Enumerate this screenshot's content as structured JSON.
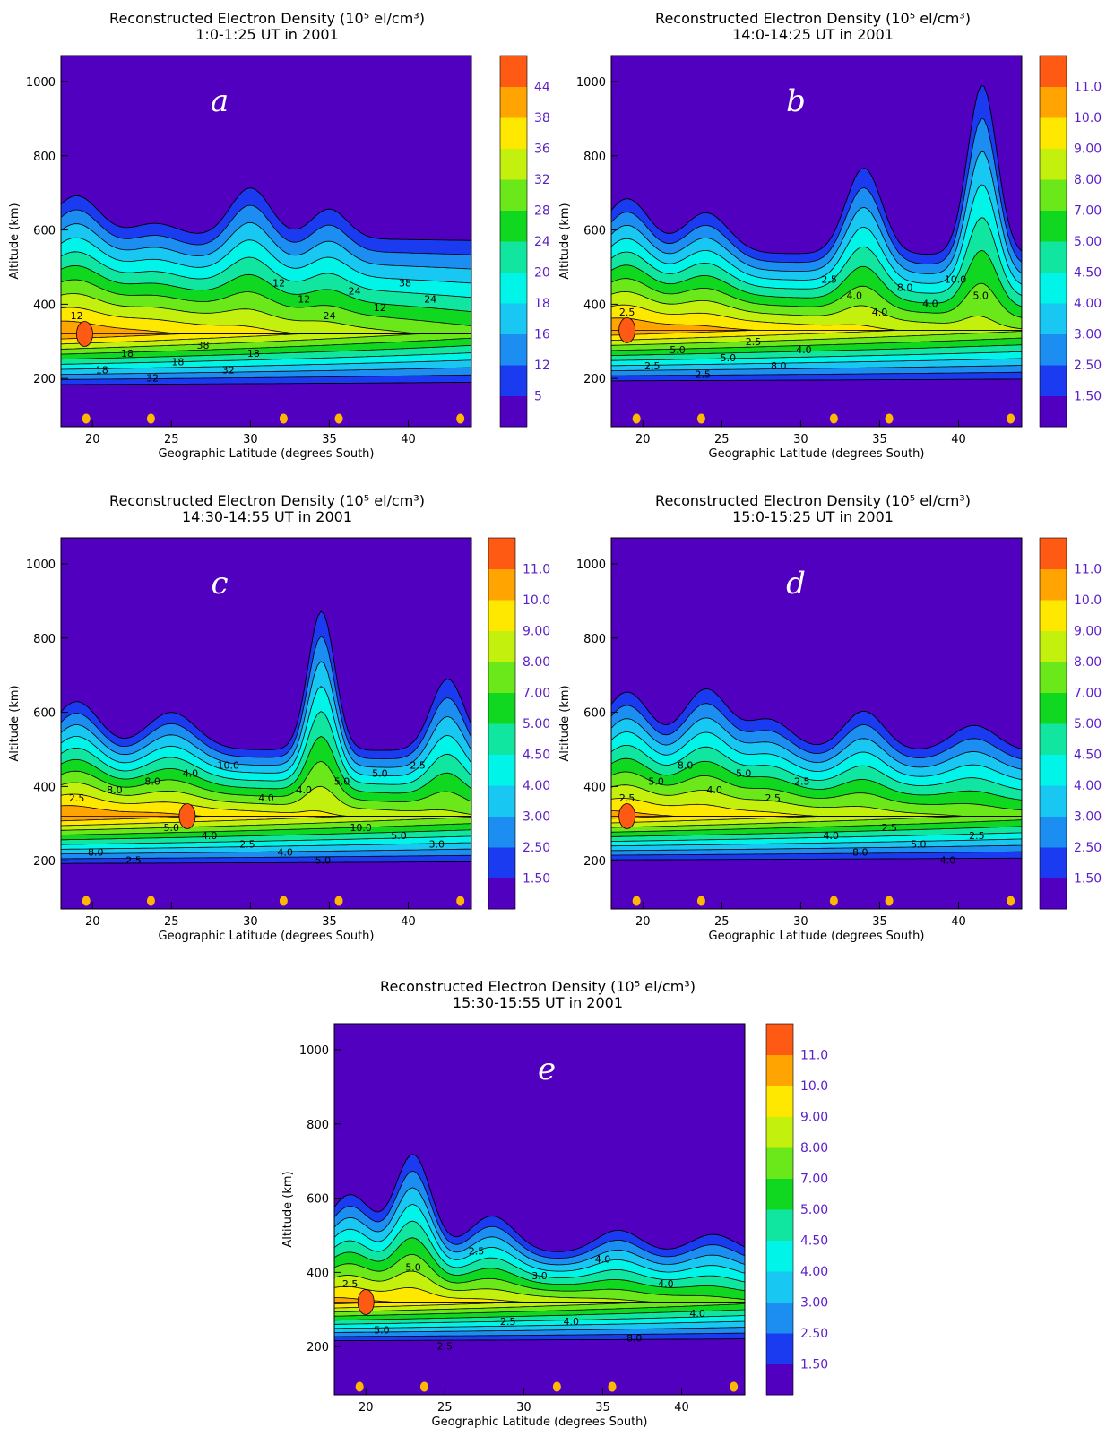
{
  "chart_data": [
    {
      "type": "heatmap",
      "panel": "a",
      "title": "Reconstructed Electron Density (10⁵ el/cm³)",
      "subtitle": "1:0-1:25 UT in 2001",
      "xlabel": "Geographic Latitude (degrees South)",
      "ylabel": "Altitude (km)",
      "xlim": [
        18,
        44
      ],
      "ylim": [
        70,
        1070
      ],
      "xticks": [
        20,
        25,
        30,
        35,
        40
      ],
      "yticks": [
        200,
        400,
        600,
        800,
        1000
      ],
      "colorbar_labels": [
        "5",
        "12",
        "16",
        "18",
        "20",
        "24",
        "28",
        "32",
        "36",
        "38",
        "44"
      ],
      "peak": {
        "x": 19.5,
        "y": 320
      },
      "contour_labels": [
        "12",
        "18",
        "24",
        "32",
        "38",
        "38",
        "12",
        "18",
        "24",
        "32",
        "24",
        "18",
        "12",
        "18",
        "12"
      ],
      "stations_x": [
        19.6,
        23.7,
        32.1,
        35.6,
        43.3
      ]
    },
    {
      "type": "heatmap",
      "panel": "b",
      "title": "Reconstructed Electron Density (10⁵ el/cm³)",
      "subtitle": "14:0-14:25 UT in 2001",
      "xlabel": "Geographic Latitude (degrees South)",
      "ylabel": "Altitude (km)",
      "xlim": [
        18,
        44
      ],
      "ylim": [
        70,
        1070
      ],
      "xticks": [
        20,
        25,
        30,
        35,
        40
      ],
      "yticks": [
        200,
        400,
        600,
        800,
        1000
      ],
      "colorbar_labels": [
        "1.50",
        "2.50",
        "3.00",
        "4.00",
        "4.50",
        "5.00",
        "7.00",
        "8.00",
        "9.00",
        "10.0",
        "11.0"
      ],
      "peak": {
        "x": 19,
        "y": 330
      },
      "contour_labels": [
        "2.5",
        "4.0",
        "5.0",
        "8.0",
        "10.0",
        "2.5",
        "4.0",
        "5.0",
        "8.0",
        "2.5",
        "4.0",
        "5.0",
        "4.0",
        "2.5",
        "2.5"
      ],
      "stations_x": [
        19.6,
        23.7,
        32.1,
        35.6,
        43.3
      ]
    },
    {
      "type": "heatmap",
      "panel": "c",
      "title": "Reconstructed Electron Density (10⁵ el/cm³)",
      "subtitle": "14:30-14:55 UT in 2001",
      "xlabel": "Geographic Latitude (degrees South)",
      "ylabel": "Altitude (km)",
      "xlim": [
        18,
        44
      ],
      "ylim": [
        70,
        1070
      ],
      "xticks": [
        20,
        25,
        30,
        35,
        40
      ],
      "yticks": [
        200,
        400,
        600,
        800,
        1000
      ],
      "colorbar_labels": [
        "1.50",
        "2.50",
        "3.00",
        "4.00",
        "4.50",
        "5.00",
        "7.00",
        "8.00",
        "9.00",
        "10.0",
        "11.0"
      ],
      "peak": {
        "x": 26,
        "y": 320
      },
      "contour_labels": [
        "2.5",
        "4.0",
        "5.0",
        "8.0",
        "10.0",
        "10.0",
        "8.0",
        "2.5",
        "5.0",
        "2.5",
        "4.0",
        "5.0",
        "8.0",
        "4.0",
        "2.5",
        "5.0",
        "4.0",
        "3.0",
        "4.0",
        "5.0"
      ],
      "stations_x": [
        19.6,
        23.7,
        32.1,
        35.6,
        43.3
      ]
    },
    {
      "type": "heatmap",
      "panel": "d",
      "title": "Reconstructed Electron Density (10⁵ el/cm³)",
      "subtitle": "15:0-15:25 UT in 2001",
      "xlabel": "Geographic Latitude (degrees South)",
      "ylabel": "Altitude (km)",
      "xlim": [
        18,
        44
      ],
      "ylim": [
        70,
        1070
      ],
      "xticks": [
        20,
        25,
        30,
        35,
        40
      ],
      "yticks": [
        200,
        400,
        600,
        800,
        1000
      ],
      "colorbar_labels": [
        "1.50",
        "2.50",
        "3.00",
        "4.00",
        "4.50",
        "5.00",
        "7.00",
        "8.00",
        "9.00",
        "10.0",
        "11.0"
      ],
      "peak": {
        "x": 19,
        "y": 320
      },
      "contour_labels": [
        "2.5",
        "4.0",
        "5.0",
        "8.0",
        "8.0",
        "2.5",
        "4.0",
        "5.0",
        "5.0",
        "4.0",
        "2.5",
        "2.5",
        "2.5"
      ],
      "stations_x": [
        19.6,
        23.7,
        32.1,
        35.6,
        43.3
      ]
    },
    {
      "type": "heatmap",
      "panel": "e",
      "title": "Reconstructed Electron Density (10⁵ el/cm³)",
      "subtitle": "15:30-15:55 UT in 2001",
      "xlabel": "Geographic Latitude (degrees South)",
      "ylabel": "Altitude (km)",
      "xlim": [
        18,
        44
      ],
      "ylim": [
        70,
        1070
      ],
      "xticks": [
        20,
        25,
        30,
        35,
        40
      ],
      "yticks": [
        200,
        400,
        600,
        800,
        1000
      ],
      "colorbar_labels": [
        "1.50",
        "2.50",
        "3.00",
        "4.00",
        "4.50",
        "5.00",
        "7.00",
        "8.00",
        "9.00",
        "10.0",
        "11.0"
      ],
      "peak": {
        "x": 20,
        "y": 320
      },
      "contour_labels": [
        "2.5",
        "4.0",
        "5.0",
        "8.0",
        "2.5",
        "4.0",
        "3.0",
        "5.0",
        "4.0",
        "2.5",
        "4.0",
        "2.5"
      ],
      "stations_x": [
        19.6,
        23.7,
        32.1,
        35.6,
        43.3
      ]
    }
  ],
  "colors": {
    "levels": [
      "#5200c0",
      "#1a3bf0",
      "#1c8ef2",
      "#18c8f2",
      "#00f5e8",
      "#10e6a0",
      "#10d820",
      "#6ae81a",
      "#c4f00e",
      "#ffe800",
      "#ffa400",
      "#ff5a14"
    ],
    "station": "#ffb800",
    "colorbar_label": "#5a1fc8"
  }
}
